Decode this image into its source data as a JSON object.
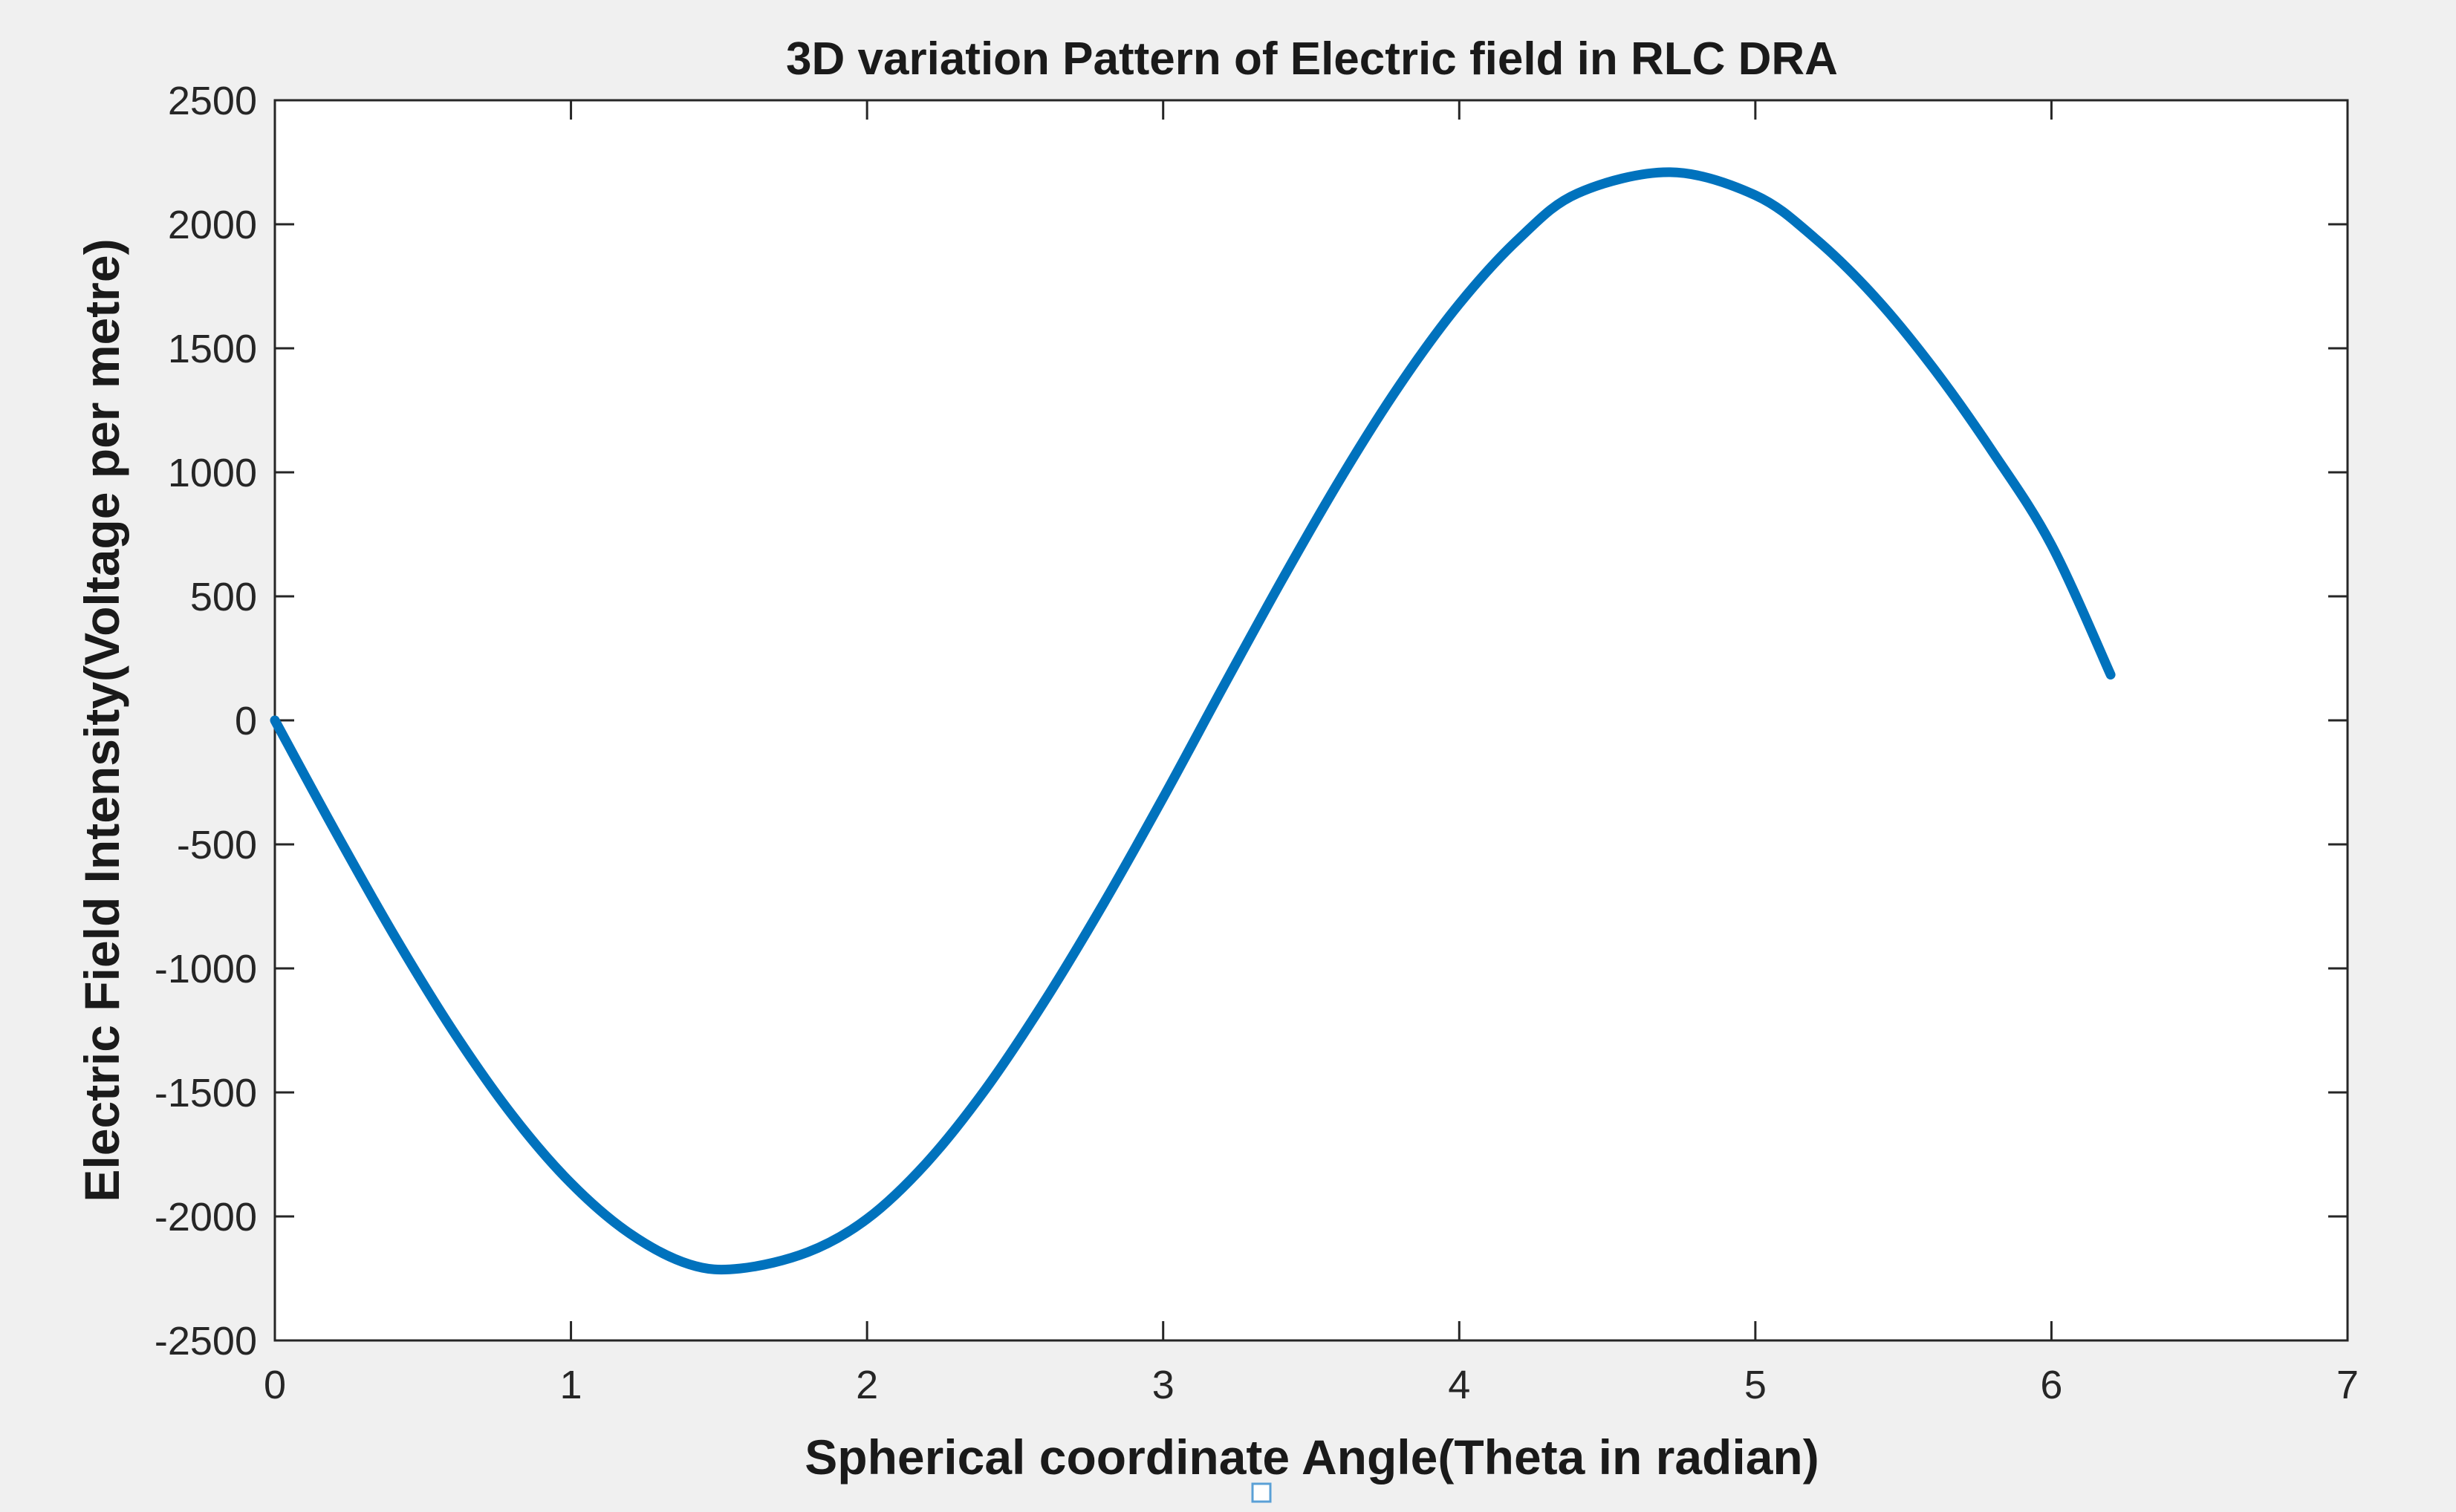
{
  "chart_data": {
    "type": "line",
    "title": "3D variation Pattern of Electric field in RLC DRA",
    "xlabel": "Spherical coordinate Angle(Theta in radian)",
    "ylabel": "Electric Field Intensity(Voltage per metre)",
    "xlim": [
      0,
      7
    ],
    "ylim": [
      -2500,
      2500
    ],
    "xticks": [
      0,
      1,
      2,
      3,
      4,
      5,
      6,
      7
    ],
    "yticks": [
      -2500,
      -2000,
      -1500,
      -1000,
      -500,
      0,
      500,
      1000,
      1500,
      2000,
      2500
    ],
    "xtick_labels": [
      "0",
      "1",
      "2",
      "3",
      "4",
      "5",
      "6",
      "7"
    ],
    "ytick_labels": [
      "-2500",
      "-2000",
      "-1500",
      "-1000",
      "-500",
      "0",
      "500",
      "1000",
      "1500",
      "2000",
      "2500"
    ],
    "grid": false,
    "legend": "none",
    "series": [
      {
        "color": "#0072bd",
        "x": [
          0,
          0.2,
          0.4,
          0.6,
          0.8,
          1.0,
          1.2,
          1.4,
          1.5708,
          1.8,
          2.0,
          2.2,
          2.4,
          2.6,
          2.8,
          3.0,
          3.2,
          3.4,
          3.6,
          3.8,
          4.0,
          4.2,
          4.4,
          4.7124,
          5.0,
          5.2,
          5.4,
          5.6,
          5.8,
          6.0,
          6.2
        ],
        "y": [
          0,
          -439,
          -861,
          -1249,
          -1589,
          -1866,
          -2070,
          -2193,
          -2210,
          -2144,
          -2010,
          -1785,
          -1487,
          -1131,
          -736,
          -312,
          129,
          563,
          977,
          1354,
          1679,
          1940,
          2125,
          2210,
          2117,
          1945,
          1712,
          1422,
          1085,
          707,
          184
        ]
      }
    ]
  },
  "colors": {
    "figure_background": "#f0f0f0",
    "axes_background": "#ffffff",
    "axis_line": "#262626",
    "series_line": "#0072bd"
  }
}
